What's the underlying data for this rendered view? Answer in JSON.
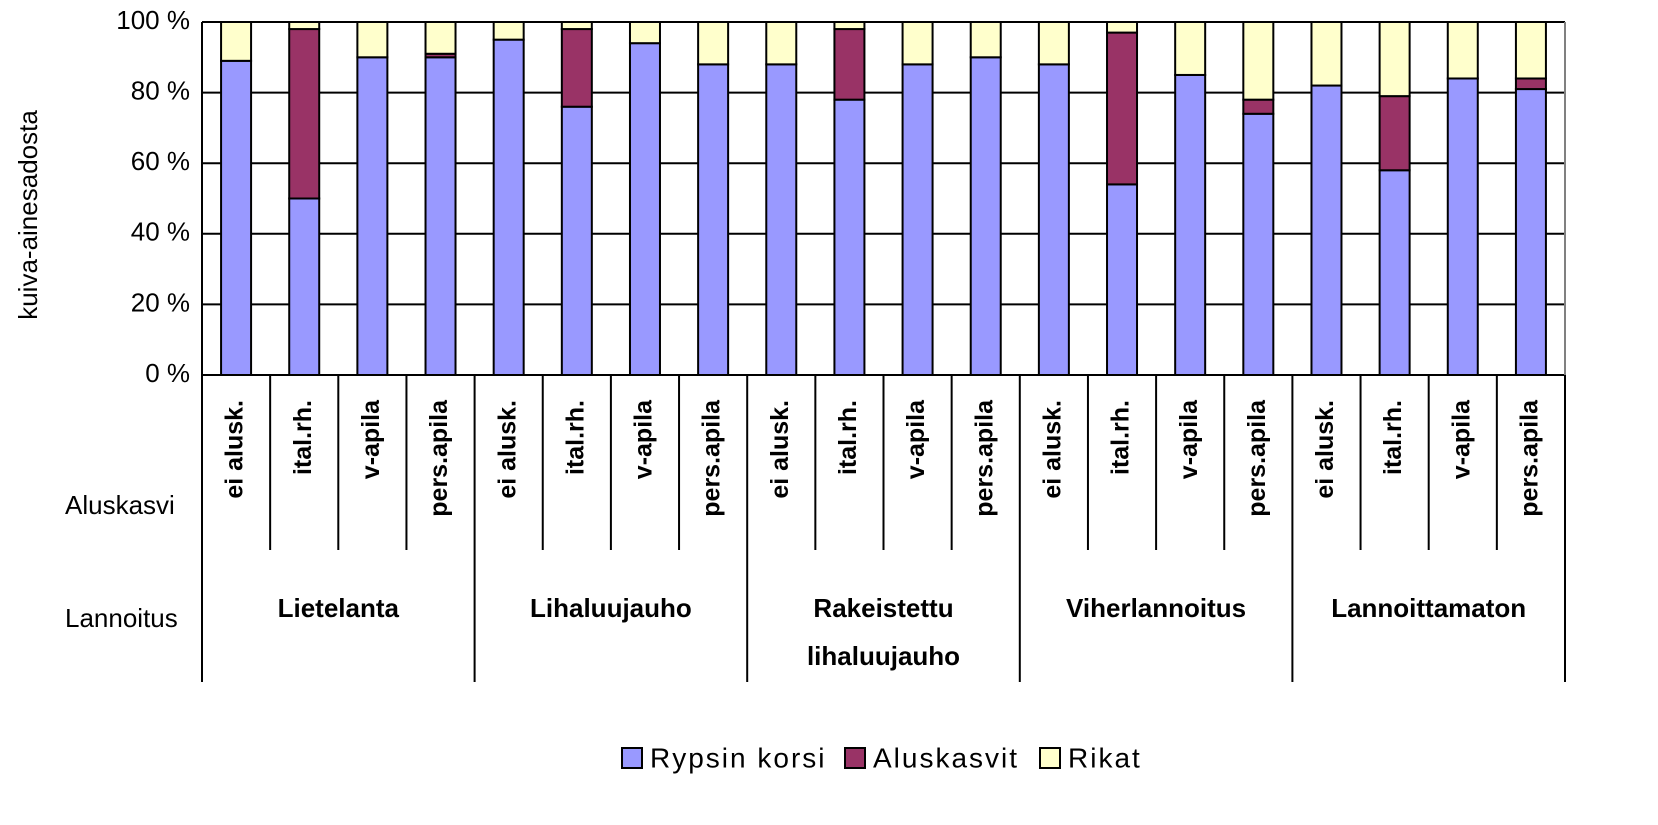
{
  "chart_data": {
    "type": "stacked_bar",
    "y_label": "kuiva-ainesadosta",
    "row_labels": [
      "Aluskasvi",
      "Lannoitus"
    ],
    "categories": [
      "ei alusk.",
      "ital.rh.",
      "v-apila",
      "pers.apila",
      "ei alusk.",
      "ital.rh.",
      "v-apila",
      "pers.apila",
      "ei alusk.",
      "ital.rh.",
      "v-apila",
      "pers.apila",
      "ei alusk.",
      "ital.rh.",
      "v-apila",
      "pers.apila",
      "ei alusk.",
      "ital.rh.",
      "v-apila",
      "pers.apila"
    ],
    "groups": [
      "Lietelanta",
      "Lihaluujauho",
      "Rakeistettu\nlihaluujauho",
      "Viherlannoitus",
      "Lannoittamaton"
    ],
    "series": [
      {
        "name": "Rypsin korsi",
        "color": "#9999ff",
        "values": [
          89,
          50,
          90,
          90,
          95,
          76,
          94,
          88,
          88,
          78,
          88,
          90,
          88,
          54,
          85,
          74,
          82,
          58,
          84,
          81
        ]
      },
      {
        "name": "Aluskasvit",
        "color": "#993366",
        "values": [
          0,
          48,
          0,
          1,
          0,
          22,
          0,
          0,
          0,
          20,
          0,
          0,
          0,
          43,
          0,
          4,
          0,
          21,
          0,
          3
        ]
      },
      {
        "name": "Rikat",
        "color": "#ffffcc",
        "values": [
          11,
          2,
          10,
          9,
          5,
          2,
          6,
          12,
          12,
          2,
          12,
          10,
          12,
          3,
          15,
          22,
          18,
          21,
          16,
          16
        ]
      }
    ],
    "ylim": [
      0,
      100
    ],
    "yticks": [
      {
        "value": 0,
        "label": "0 %"
      },
      {
        "value": 20,
        "label": "20 %"
      },
      {
        "value": 40,
        "label": "40 %"
      },
      {
        "value": 60,
        "label": "60 %"
      },
      {
        "value": 80,
        "label": "80 %"
      },
      {
        "value": 100,
        "label": "100 %"
      }
    ],
    "grid": true,
    "legend": "bottom"
  }
}
